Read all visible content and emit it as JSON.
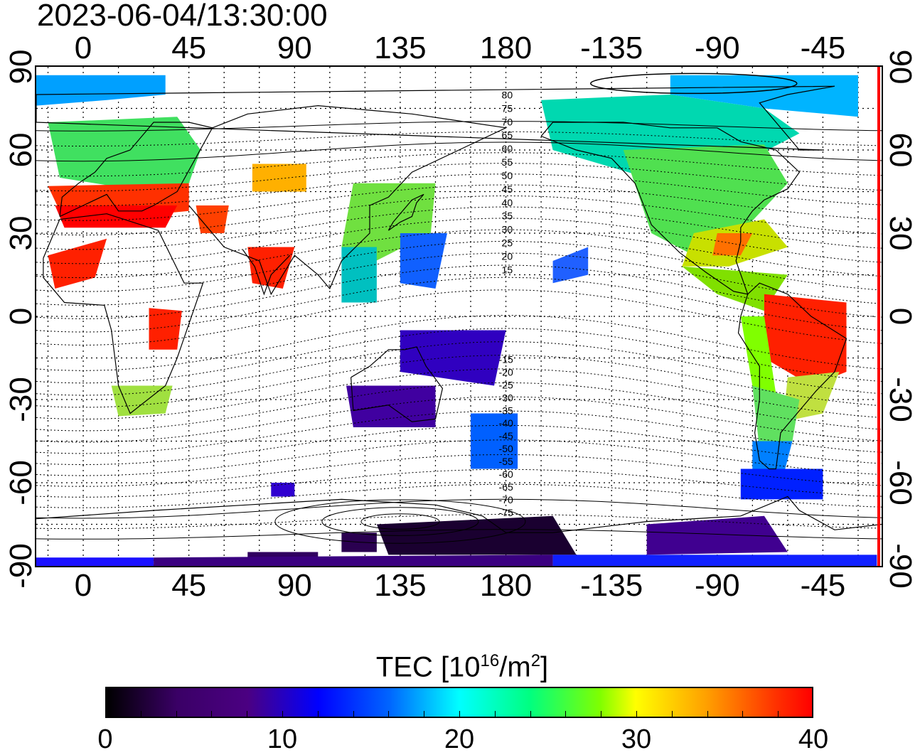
{
  "timestamp": "2023-06-04/13:30:00",
  "top_lon_ticks": [
    "0",
    "45",
    "90",
    "135",
    "180",
    "-135",
    "-90",
    "-45"
  ],
  "bottom_lon_ticks": [
    "0",
    "45",
    "90",
    "135",
    "180",
    "-135",
    "-90",
    "-45"
  ],
  "left_lat_ticks": [
    "90",
    "60",
    "30",
    "0",
    "-30",
    "-60",
    "-90"
  ],
  "right_lat_ticks": [
    "90",
    "60",
    "30",
    "0",
    "-30",
    "-60",
    "-90"
  ],
  "dip_contour_labels_north": [
    "80",
    "75",
    "70",
    "65",
    "60",
    "55",
    "50",
    "45",
    "40",
    "35",
    "30",
    "25",
    "20",
    "15"
  ],
  "dip_contour_labels_south": [
    "-15",
    "-20",
    "-25",
    "-30",
    "-35",
    "-40",
    "-45",
    "-50",
    "-55",
    "-60",
    "-65",
    "-70",
    "-75"
  ],
  "colorbar": {
    "title_prefix": "TEC  [10",
    "title_exp1": "16",
    "title_mid": "/m",
    "title_exp2": "2",
    "title_suffix": "]",
    "min": 0,
    "max": 40,
    "tick_labels": [
      "0",
      "10",
      "20",
      "30",
      "40"
    ]
  },
  "colors": {
    "scale": [
      "#000000",
      "#3a0066",
      "#4b0082",
      "#0000ff",
      "#0064ff",
      "#00ffff",
      "#00ff80",
      "#80ff00",
      "#ffff00",
      "#ffa000",
      "#ff3000",
      "#ff0000"
    ],
    "accent_right_edge": "#ff0000"
  }
}
